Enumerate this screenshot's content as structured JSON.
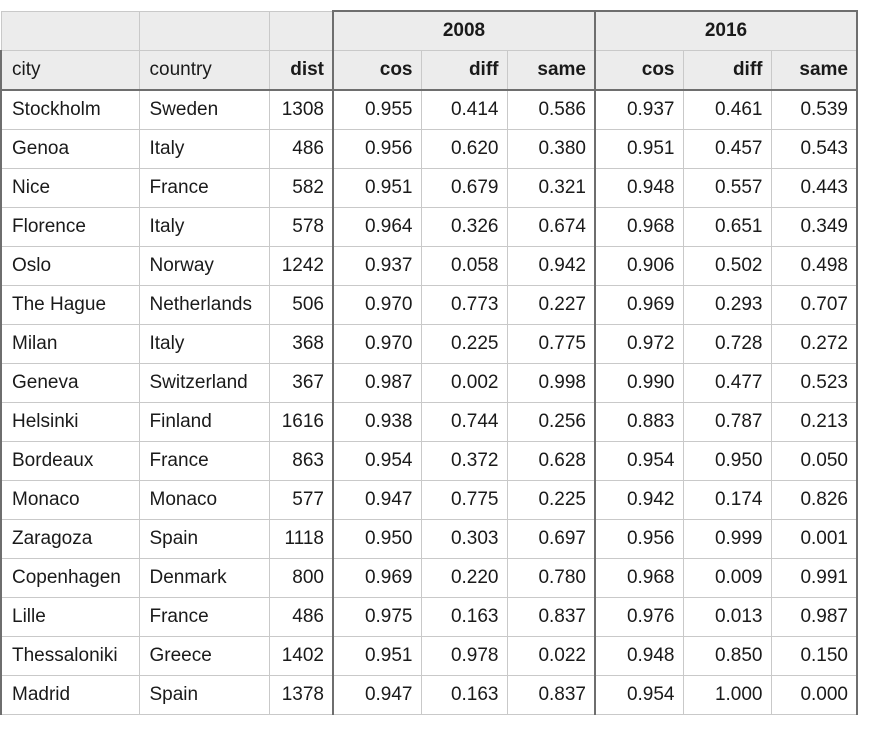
{
  "year_headers": [
    "2008",
    "2016"
  ],
  "columns": [
    "city",
    "country",
    "dist",
    "cos",
    "diff",
    "same",
    "cos",
    "diff",
    "same"
  ],
  "rows": [
    [
      "Stockholm",
      "Sweden",
      "1308",
      "0.955",
      "0.414",
      "0.586",
      "0.937",
      "0.461",
      "0.539"
    ],
    [
      "Genoa",
      "Italy",
      "486",
      "0.956",
      "0.620",
      "0.380",
      "0.951",
      "0.457",
      "0.543"
    ],
    [
      "Nice",
      "France",
      "582",
      "0.951",
      "0.679",
      "0.321",
      "0.948",
      "0.557",
      "0.443"
    ],
    [
      "Florence",
      "Italy",
      "578",
      "0.964",
      "0.326",
      "0.674",
      "0.968",
      "0.651",
      "0.349"
    ],
    [
      "Oslo",
      "Norway",
      "1242",
      "0.937",
      "0.058",
      "0.942",
      "0.906",
      "0.502",
      "0.498"
    ],
    [
      "The Hague",
      "Netherlands",
      "506",
      "0.970",
      "0.773",
      "0.227",
      "0.969",
      "0.293",
      "0.707"
    ],
    [
      "Milan",
      "Italy",
      "368",
      "0.970",
      "0.225",
      "0.775",
      "0.972",
      "0.728",
      "0.272"
    ],
    [
      "Geneva",
      "Switzerland",
      "367",
      "0.987",
      "0.002",
      "0.998",
      "0.990",
      "0.477",
      "0.523"
    ],
    [
      "Helsinki",
      "Finland",
      "1616",
      "0.938",
      "0.744",
      "0.256",
      "0.883",
      "0.787",
      "0.213"
    ],
    [
      "Bordeaux",
      "France",
      "863",
      "0.954",
      "0.372",
      "0.628",
      "0.954",
      "0.950",
      "0.050"
    ],
    [
      "Monaco",
      "Monaco",
      "577",
      "0.947",
      "0.775",
      "0.225",
      "0.942",
      "0.174",
      "0.826"
    ],
    [
      "Zaragoza",
      "Spain",
      "1118",
      "0.950",
      "0.303",
      "0.697",
      "0.956",
      "0.999",
      "0.001"
    ],
    [
      "Copenhagen",
      "Denmark",
      "800",
      "0.969",
      "0.220",
      "0.780",
      "0.968",
      "0.009",
      "0.991"
    ],
    [
      "Lille",
      "France",
      "486",
      "0.975",
      "0.163",
      "0.837",
      "0.976",
      "0.013",
      "0.987"
    ],
    [
      "Thessaloniki",
      "Greece",
      "1402",
      "0.951",
      "0.978",
      "0.022",
      "0.948",
      "0.850",
      "0.150"
    ],
    [
      "Madrid",
      "Spain",
      "1378",
      "0.947",
      "0.163",
      "0.837",
      "0.954",
      "1.000",
      "0.000"
    ]
  ]
}
